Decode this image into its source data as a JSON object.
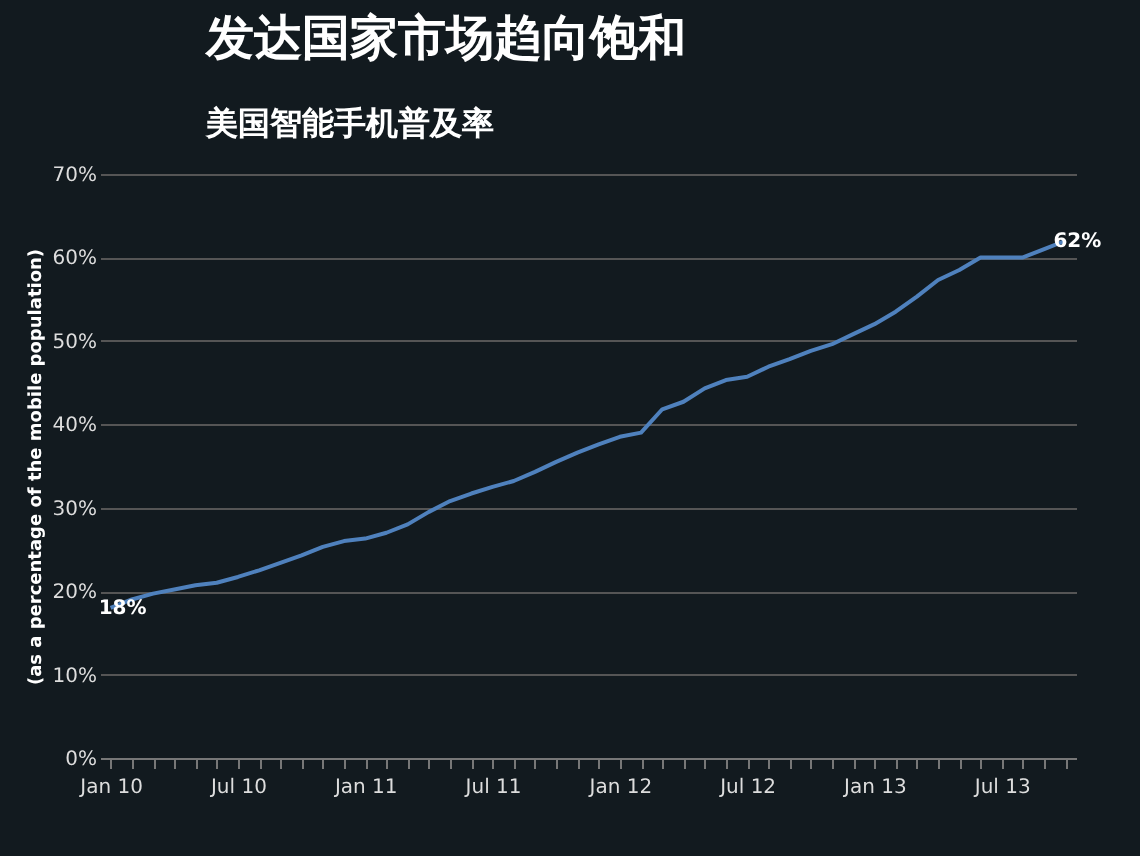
{
  "chart_data": {
    "type": "line",
    "title": "发达国家市场趋向饱和",
    "subtitle": "美国智能手机普及率",
    "ylabel": "(as a percentage of the mobile population)",
    "categories": [
      "Jan 10",
      null,
      null,
      null,
      null,
      null,
      "Jul 10",
      null,
      null,
      null,
      null,
      null,
      "Jan 11",
      null,
      null,
      null,
      null,
      null,
      "Jul 11",
      null,
      null,
      null,
      null,
      null,
      "Jan 12",
      null,
      null,
      null,
      null,
      null,
      "Jul 12",
      null,
      null,
      null,
      null,
      null,
      "Jan 13",
      null,
      null,
      null,
      null,
      null,
      "Jul 13",
      null,
      null,
      null
    ],
    "series": [
      {
        "color": "#4f81bd",
        "values": [
          18,
          19,
          19.7,
          20.2,
          20.7,
          21,
          21.7,
          22.5,
          23.4,
          24.3,
          25.3,
          26,
          26.3,
          27,
          28,
          29.5,
          30.8,
          31.7,
          32.5,
          33.2,
          34.3,
          35.5,
          36.6,
          37.6,
          38.5,
          39,
          41.8,
          42.7,
          44.3,
          45.3,
          45.7,
          46.9,
          47.8,
          48.8,
          49.6,
          50.8,
          52,
          53.5,
          55.3,
          57.3,
          58.5,
          60,
          60,
          60,
          61,
          62
        ],
        "value_labels": [
          "18%",
          null,
          null,
          null,
          null,
          null,
          null,
          null,
          null,
          null,
          null,
          null,
          null,
          null,
          null,
          null,
          null,
          null,
          null,
          null,
          null,
          null,
          null,
          null,
          null,
          null,
          null,
          null,
          null,
          null,
          null,
          null,
          null,
          null,
          null,
          null,
          null,
          null,
          null,
          null,
          null,
          null,
          null,
          null,
          null,
          "62%"
        ]
      }
    ],
    "ylim": [
      0,
      70
    ],
    "yticks": [
      {
        "value": 0,
        "label": "0%"
      },
      {
        "value": 10,
        "label": "10%"
      },
      {
        "value": 20,
        "label": "20%"
      },
      {
        "value": 30,
        "label": "30%"
      },
      {
        "value": 40,
        "label": "40%"
      },
      {
        "value": 50,
        "label": "50%"
      },
      {
        "value": 60,
        "label": "60%"
      },
      {
        "value": 70,
        "label": "70%"
      }
    ],
    "grid": "y",
    "marker": "none",
    "line_style": "solid"
  }
}
